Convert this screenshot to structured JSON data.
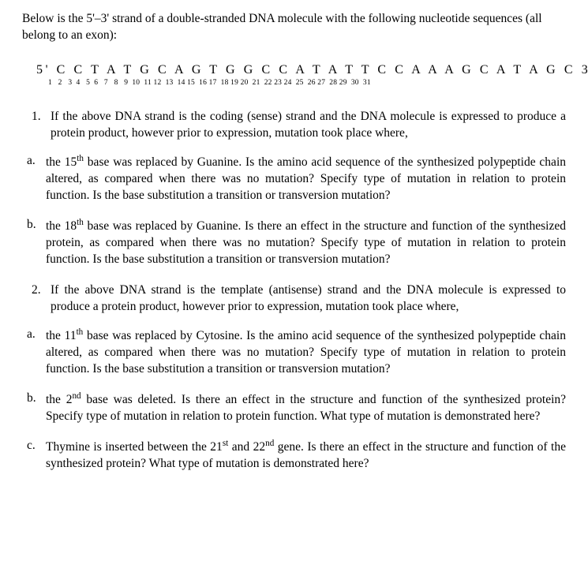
{
  "intro": "Below is the 5'–3' strand of a double-stranded DNA molecule with the following nucleotide sequences (all belong to an exon):",
  "sequence": {
    "line": "5' C C T A T G C A G T G G C C A T A T T C C A A A G C A T A G C 3'",
    "numbers": "1   2   3  4   5  6   7   8   9  10  11 12  13  14 15  16 17  18 19 20  21  22 23 24  25  26 27  28 29  30  31"
  },
  "q1": {
    "num": "1.",
    "stem": "If the above DNA strand is the coding (sense) strand and the DNA molecule is expressed to produce a protein product, however prior to expression, mutation took place where,",
    "a": {
      "let": "a.",
      "html": "the 15<sup>th</sup> base was replaced by Guanine. Is the amino acid sequence of the synthesized polypeptide chain altered, as compared when there was no mutation? Specify type of mutation in relation to protein function. Is the base substitution a transition or transversion mutation?"
    },
    "b": {
      "let": "b.",
      "html": "the 18<sup>th</sup> base was replaced by Guanine. Is there an effect in the structure and function of the synthesized protein, as compared when there was no mutation? Specify type of mutation in relation to protein function. Is the base substitution a transition or transversion mutation?"
    }
  },
  "q2": {
    "num": "2.",
    "stem": "If the above DNA strand is the template (antisense) strand and the DNA molecule is expressed to produce a protein product, however prior to expression, mutation took place where,",
    "a": {
      "let": "a.",
      "html": "the 11<sup>th</sup> base was replaced by Cytosine. Is the amino acid sequence of the synthesized polypeptide chain altered, as compared when there was no mutation? Specify type of mutation in relation to protein function. Is the base substitution a transition or transversion mutation?"
    },
    "b": {
      "let": "b.",
      "html": "the 2<sup>nd</sup> base was deleted. Is there an effect in the structure and function of the synthesized protein? Specify type of mutation in relation to protein function. What type of mutation is demonstrated here?"
    },
    "c": {
      "let": "c.",
      "html": "Thymine is inserted between the 21<sup>st</sup> and 22<sup>nd</sup> gene. Is there an effect in the structure and function of the synthesized protein? What type of mutation is demonstrated here?"
    }
  }
}
